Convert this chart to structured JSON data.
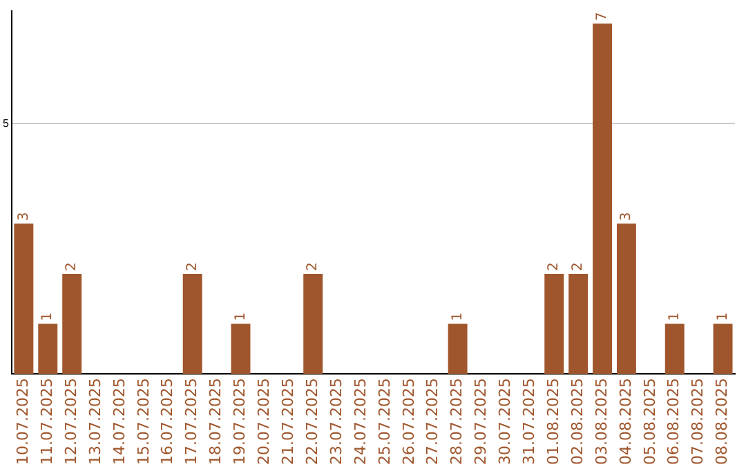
{
  "chart_data": {
    "type": "bar",
    "categories": [
      "10.07.2025",
      "11.07.2025",
      "12.07.2025",
      "13.07.2025",
      "14.07.2025",
      "15.07.2025",
      "16.07.2025",
      "17.07.2025",
      "18.07.2025",
      "19.07.2025",
      "20.07.2025",
      "21.07.2025",
      "22.07.2025",
      "23.07.2025",
      "24.07.2025",
      "25.07.2025",
      "26.07.2025",
      "27.07.2025",
      "28.07.2025",
      "29.07.2025",
      "30.07.2025",
      "31.07.2025",
      "01.08.2025",
      "02.08.2025",
      "03.08.2025",
      "04.08.2025",
      "05.08.2025",
      "06.08.2025",
      "07.08.2025",
      "08.08.2025"
    ],
    "values": [
      3,
      1,
      2,
      0,
      0,
      0,
      0,
      2,
      0,
      1,
      0,
      0,
      2,
      0,
      0,
      0,
      0,
      0,
      1,
      0,
      0,
      0,
      2,
      2,
      7,
      3,
      0,
      1,
      0,
      1
    ],
    "value_labels": [
      "3",
      "1",
      "2",
      null,
      null,
      null,
      null,
      "2",
      null,
      "1",
      null,
      null,
      "2",
      null,
      null,
      null,
      null,
      null,
      "1",
      null,
      null,
      null,
      "2",
      "2",
      "7",
      "3",
      null,
      "1",
      null,
      "1"
    ],
    "color": "#a0562c",
    "ylim": [
      0,
      7.25
    ],
    "yticks": [
      5
    ],
    "grid": "y",
    "legend": false
  }
}
